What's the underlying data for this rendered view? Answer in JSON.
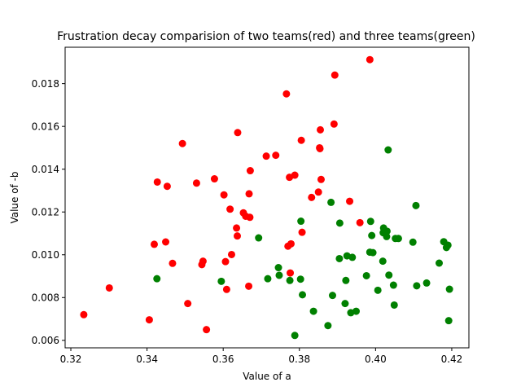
{
  "chart_data": {
    "type": "scatter",
    "title": "Frustration decay comparision of two teams(red) and three teams(green)",
    "xlabel": "Value of a",
    "ylabel": "Value of -b",
    "xlim": [
      0.3185,
      0.4245
    ],
    "ylim": [
      0.00565,
      0.0197
    ],
    "xticks": [
      "0.32",
      "0.34",
      "0.36",
      "0.38",
      "0.40",
      "0.42"
    ],
    "xtick_values": [
      0.32,
      0.34,
      0.36,
      0.38,
      0.4,
      0.42
    ],
    "yticks": [
      "0.006",
      "0.008",
      "0.010",
      "0.012",
      "0.014",
      "0.016",
      "0.018"
    ],
    "ytick_values": [
      0.006,
      0.008,
      0.01,
      0.012,
      0.014,
      0.016,
      0.018
    ],
    "grid": false,
    "series": [
      {
        "color": "#ff0000",
        "points": [
          [
            0.3234,
            0.0072
          ],
          [
            0.3301,
            0.00845
          ],
          [
            0.3406,
            0.00696
          ],
          [
            0.3419,
            0.01049
          ],
          [
            0.3427,
            0.0134
          ],
          [
            0.3449,
            0.0106
          ],
          [
            0.3453,
            0.0132
          ],
          [
            0.3467,
            0.0096
          ],
          [
            0.3493,
            0.0152
          ],
          [
            0.3507,
            0.00772
          ],
          [
            0.353,
            0.01335
          ],
          [
            0.3544,
            0.00954
          ],
          [
            0.3547,
            0.0097
          ],
          [
            0.3556,
            0.0065
          ],
          [
            0.3577,
            0.01355
          ],
          [
            0.3602,
            0.0128
          ],
          [
            0.3606,
            0.00968
          ],
          [
            0.3609,
            0.00838
          ],
          [
            0.3618,
            0.01213
          ],
          [
            0.3622,
            0.01001
          ],
          [
            0.3635,
            0.01125
          ],
          [
            0.3637,
            0.01088
          ],
          [
            0.3638,
            0.01571
          ],
          [
            0.3653,
            0.01196
          ],
          [
            0.3659,
            0.0118
          ],
          [
            0.3667,
            0.00853
          ],
          [
            0.3668,
            0.01285
          ],
          [
            0.367,
            0.01175
          ],
          [
            0.3671,
            0.01393
          ],
          [
            0.3713,
            0.01461
          ],
          [
            0.3738,
            0.01465
          ],
          [
            0.3766,
            0.01752
          ],
          [
            0.377,
            0.0104
          ],
          [
            0.3774,
            0.01362
          ],
          [
            0.3776,
            0.00915
          ],
          [
            0.3778,
            0.01051
          ],
          [
            0.3788,
            0.01372
          ],
          [
            0.3805,
            0.01535
          ],
          [
            0.3807,
            0.01105
          ],
          [
            0.3832,
            0.01268
          ],
          [
            0.385,
            0.01293
          ],
          [
            0.3853,
            0.015
          ],
          [
            0.3854,
            0.01496
          ],
          [
            0.3855,
            0.01584
          ],
          [
            0.3857,
            0.01352
          ],
          [
            0.3891,
            0.01611
          ],
          [
            0.3893,
            0.0184
          ],
          [
            0.3932,
            0.0125
          ],
          [
            0.3959,
            0.0115
          ],
          [
            0.3985,
            0.01912
          ]
        ]
      },
      {
        "color": "#008000",
        "points": [
          [
            0.3426,
            0.00888
          ],
          [
            0.3595,
            0.00876
          ],
          [
            0.3693,
            0.01079
          ],
          [
            0.3717,
            0.00888
          ],
          [
            0.3745,
            0.0094
          ],
          [
            0.3747,
            0.00904
          ],
          [
            0.3775,
            0.0088
          ],
          [
            0.3788,
            0.00623
          ],
          [
            0.3803,
            0.00886
          ],
          [
            0.3804,
            0.01157
          ],
          [
            0.3808,
            0.00813
          ],
          [
            0.3837,
            0.00736
          ],
          [
            0.3875,
            0.00669
          ],
          [
            0.3883,
            0.01245
          ],
          [
            0.3887,
            0.0081
          ],
          [
            0.3905,
            0.00982
          ],
          [
            0.3906,
            0.01148
          ],
          [
            0.392,
            0.00772
          ],
          [
            0.3922,
            0.0088
          ],
          [
            0.3925,
            0.00995
          ],
          [
            0.3935,
            0.00729
          ],
          [
            0.3939,
            0.00988
          ],
          [
            0.3949,
            0.00736
          ],
          [
            0.3976,
            0.00902
          ],
          [
            0.3985,
            0.01012
          ],
          [
            0.3987,
            0.01156
          ],
          [
            0.399,
            0.0109
          ],
          [
            0.3993,
            0.0101
          ],
          [
            0.4006,
            0.00834
          ],
          [
            0.4019,
            0.0097
          ],
          [
            0.402,
            0.01103
          ],
          [
            0.4021,
            0.01125
          ],
          [
            0.4029,
            0.01085
          ],
          [
            0.403,
            0.0111
          ],
          [
            0.4033,
            0.0149
          ],
          [
            0.4035,
            0.00905
          ],
          [
            0.4047,
            0.00858
          ],
          [
            0.4049,
            0.00765
          ],
          [
            0.4052,
            0.01076
          ],
          [
            0.406,
            0.01076
          ],
          [
            0.4098,
            0.01059
          ],
          [
            0.4106,
            0.0123
          ],
          [
            0.4108,
            0.00855
          ],
          [
            0.4134,
            0.00868
          ],
          [
            0.4167,
            0.00961
          ],
          [
            0.4179,
            0.01061
          ],
          [
            0.4186,
            0.01034
          ],
          [
            0.419,
            0.01045
          ],
          [
            0.4192,
            0.00692
          ],
          [
            0.4194,
            0.00839
          ]
        ]
      }
    ]
  }
}
